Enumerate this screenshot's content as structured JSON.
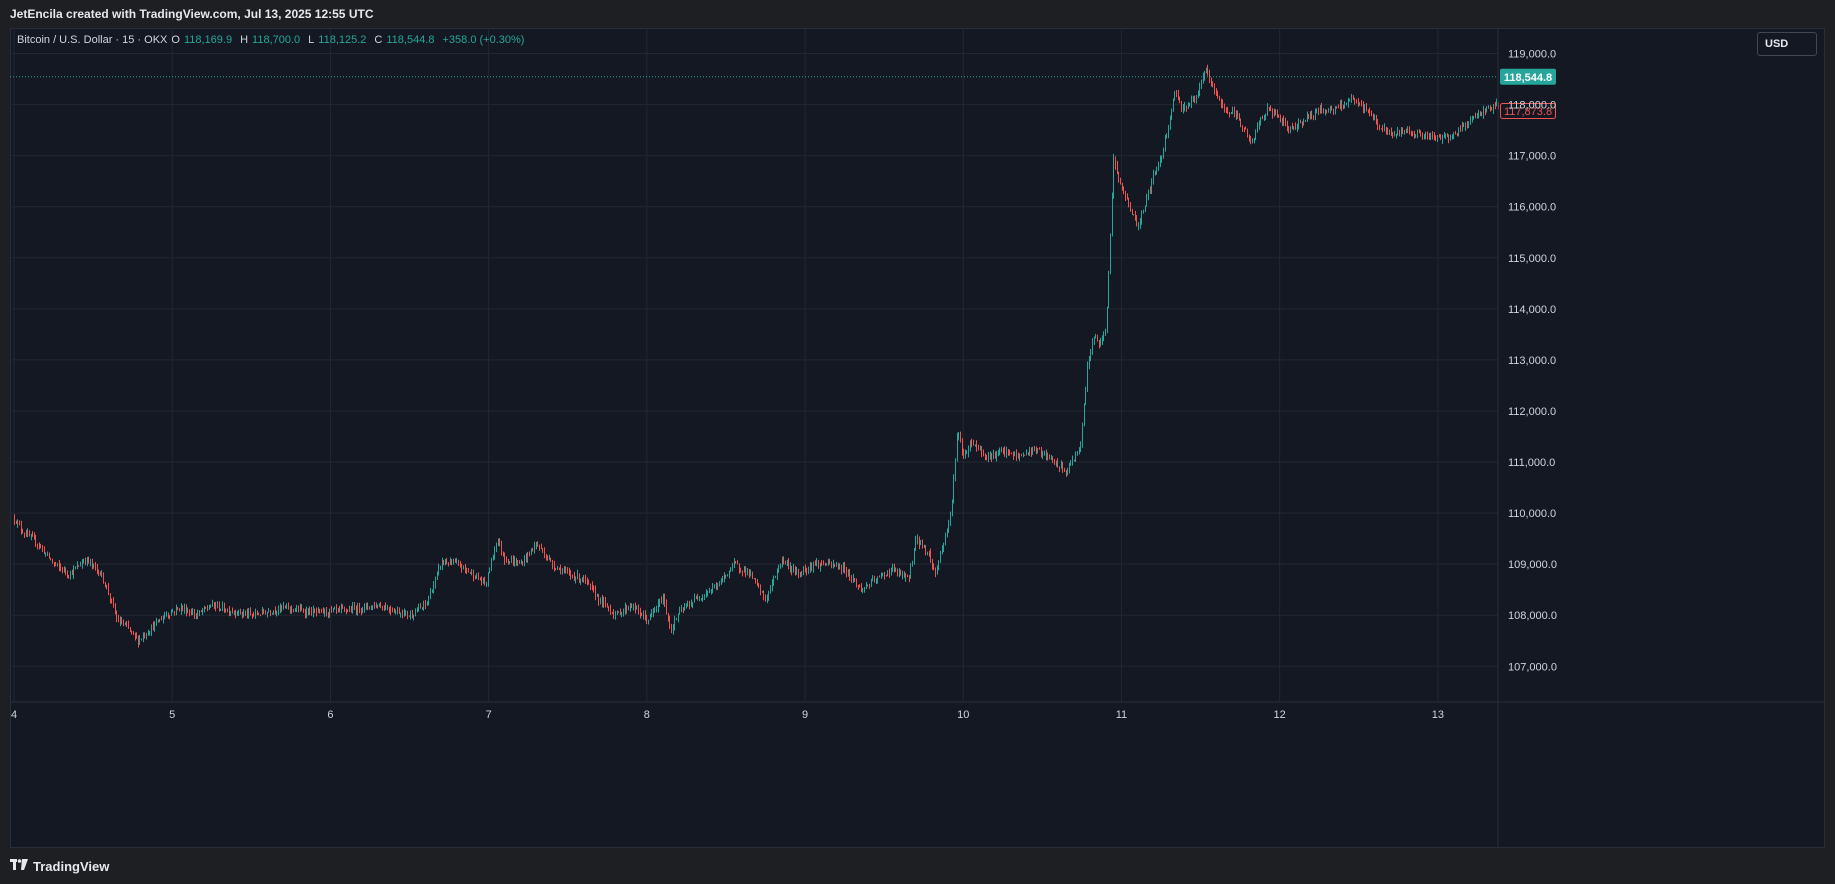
{
  "header": {
    "credit": "JetEncila created with TradingView.com, Jul 13, 2025 12:55 UTC"
  },
  "legend": {
    "symbol": "Bitcoin / U.S. Dollar · 15 · OKX",
    "open_label": "O",
    "open": "118,169.9",
    "high_label": "H",
    "high": "118,700.0",
    "low_label": "L",
    "low": "118,125.2",
    "close_label": "C",
    "close": "118,544.8",
    "change": "+358.0 (+0.30%)"
  },
  "currency_button": "USD",
  "footer": {
    "logo_icon": "tradingview-logo-icon",
    "logo_text": "TradingView"
  },
  "colors": {
    "background": "#141823",
    "up": "#26a69a",
    "down": "#ef5350",
    "grid": "#232733",
    "text": "#d1d4dc"
  },
  "chart_data": {
    "type": "candlestick",
    "symbol": "Bitcoin / U.S. Dollar",
    "interval": "15",
    "exchange": "OKX",
    "y_axis": {
      "ticks": [
        107000,
        108000,
        109000,
        110000,
        111000,
        112000,
        113000,
        114000,
        115000,
        116000,
        117000,
        118000,
        119000
      ],
      "tick_labels": [
        "107,000.0",
        "108,000.0",
        "109,000.0",
        "110,000.0",
        "111,000.0",
        "112,000.0",
        "113,000.0",
        "114,000.0",
        "115,000.0",
        "116,000.0",
        "117,000.0",
        "118,000.0",
        "119,000.0"
      ],
      "range": [
        106300,
        119500
      ]
    },
    "x_axis": {
      "tick_labels": [
        "4",
        "5",
        "6",
        "7",
        "8",
        "9",
        "10",
        "11",
        "12",
        "13"
      ],
      "tick_days": [
        4,
        5,
        6,
        7,
        8,
        9,
        10,
        11,
        12,
        13
      ],
      "range_days": [
        4.0,
        13.38
      ]
    },
    "price_line": {
      "value": 118544.8,
      "label": "118,544.8",
      "color": "#26a69a"
    },
    "secondary_label": {
      "value": 117873.8,
      "label": "117,873.8",
      "color": "#ef5350"
    },
    "path": [
      [
        4.0,
        109900
      ],
      [
        4.05,
        109650
      ],
      [
        4.15,
        109400
      ],
      [
        4.25,
        109000
      ],
      [
        4.35,
        108800
      ],
      [
        4.45,
        109100
      ],
      [
        4.55,
        108800
      ],
      [
        4.6,
        108400
      ],
      [
        4.65,
        107900
      ],
      [
        4.7,
        107800
      ],
      [
        4.78,
        107500
      ],
      [
        4.85,
        107700
      ],
      [
        4.95,
        108000
      ],
      [
        5.05,
        108150
      ],
      [
        5.15,
        108000
      ],
      [
        5.25,
        108200
      ],
      [
        5.35,
        108100
      ],
      [
        5.5,
        108000
      ],
      [
        5.7,
        108150
      ],
      [
        5.9,
        108050
      ],
      [
        6.1,
        108100
      ],
      [
        6.3,
        108200
      ],
      [
        6.5,
        108000
      ],
      [
        6.6,
        108200
      ],
      [
        6.65,
        108600
      ],
      [
        6.7,
        109050
      ],
      [
        6.8,
        109000
      ],
      [
        6.9,
        108800
      ],
      [
        6.98,
        108600
      ],
      [
        7.05,
        109500
      ],
      [
        7.1,
        109100
      ],
      [
        7.2,
        109000
      ],
      [
        7.3,
        109400
      ],
      [
        7.4,
        109000
      ],
      [
        7.5,
        108800
      ],
      [
        7.6,
        108700
      ],
      [
        7.7,
        108300
      ],
      [
        7.8,
        108000
      ],
      [
        7.9,
        108200
      ],
      [
        8.0,
        107900
      ],
      [
        8.05,
        108100
      ],
      [
        8.1,
        108350
      ],
      [
        8.15,
        107700
      ],
      [
        8.2,
        108050
      ],
      [
        8.3,
        108300
      ],
      [
        8.45,
        108600
      ],
      [
        8.55,
        109000
      ],
      [
        8.65,
        108800
      ],
      [
        8.75,
        108300
      ],
      [
        8.85,
        109100
      ],
      [
        8.95,
        108800
      ],
      [
        9.05,
        109000
      ],
      [
        9.15,
        109000
      ],
      [
        9.25,
        108900
      ],
      [
        9.35,
        108500
      ],
      [
        9.45,
        108700
      ],
      [
        9.55,
        108900
      ],
      [
        9.65,
        108700
      ],
      [
        9.7,
        109500
      ],
      [
        9.78,
        109200
      ],
      [
        9.82,
        108800
      ],
      [
        9.88,
        109500
      ],
      [
        9.92,
        110000
      ],
      [
        9.96,
        111600
      ],
      [
        10.0,
        111100
      ],
      [
        10.05,
        111400
      ],
      [
        10.15,
        111100
      ],
      [
        10.25,
        111200
      ],
      [
        10.35,
        111100
      ],
      [
        10.45,
        111250
      ],
      [
        10.55,
        111050
      ],
      [
        10.65,
        110800
      ],
      [
        10.7,
        111100
      ],
      [
        10.74,
        111300
      ],
      [
        10.78,
        112800
      ],
      [
        10.82,
        113500
      ],
      [
        10.86,
        113300
      ],
      [
        10.9,
        113600
      ],
      [
        10.95,
        117000
      ],
      [
        10.98,
        116500
      ],
      [
        11.05,
        116000
      ],
      [
        11.1,
        115600
      ],
      [
        11.15,
        116100
      ],
      [
        11.2,
        116600
      ],
      [
        11.25,
        117000
      ],
      [
        11.3,
        117700
      ],
      [
        11.34,
        118300
      ],
      [
        11.38,
        117900
      ],
      [
        11.42,
        118000
      ],
      [
        11.48,
        118200
      ],
      [
        11.53,
        118700
      ],
      [
        11.58,
        118300
      ],
      [
        11.65,
        117900
      ],
      [
        11.72,
        117800
      ],
      [
        11.78,
        117500
      ],
      [
        11.82,
        117200
      ],
      [
        11.86,
        117600
      ],
      [
        11.92,
        117900
      ],
      [
        11.98,
        117800
      ],
      [
        12.05,
        117500
      ],
      [
        12.15,
        117700
      ],
      [
        12.25,
        117900
      ],
      [
        12.35,
        117900
      ],
      [
        12.45,
        118100
      ],
      [
        12.55,
        117900
      ],
      [
        12.62,
        117600
      ],
      [
        12.7,
        117400
      ],
      [
        12.8,
        117500
      ],
      [
        12.9,
        117400
      ],
      [
        13.0,
        117350
      ],
      [
        13.1,
        117400
      ],
      [
        13.2,
        117700
      ],
      [
        13.3,
        117900
      ],
      [
        13.38,
        118000
      ]
    ]
  }
}
